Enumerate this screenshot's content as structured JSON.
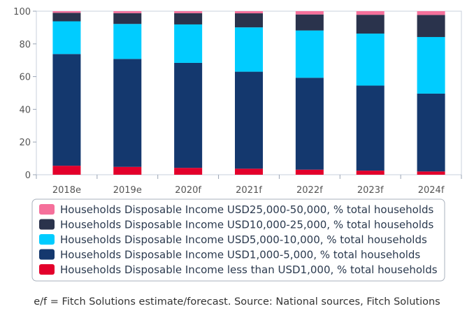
{
  "chart_data": {
    "type": "bar",
    "stacked": true,
    "categories": [
      "2018e",
      "2019e",
      "2020f",
      "2021f",
      "2022f",
      "2023f",
      "2024f"
    ],
    "ylim": [
      0,
      100
    ],
    "yticks": [
      0,
      20,
      40,
      60,
      80,
      100
    ],
    "grid": false,
    "legend_position": "bottom",
    "series": [
      {
        "name": "Households Disposable Income less than USD1,000, % total households",
        "color": "#e3002b",
        "values": [
          5.5,
          4.8,
          4.2,
          3.7,
          3.1,
          2.5,
          2.0
        ]
      },
      {
        "name": "Households Disposable Income USD1,000-5,000, % total households",
        "color": "#14386e",
        "values": [
          68.3,
          66.0,
          64.2,
          59.3,
          56.2,
          52.0,
          47.6
        ]
      },
      {
        "name": "Households Disposable Income USD5,000-10,000, % total households",
        "color": "#00ccff",
        "values": [
          20.0,
          21.4,
          23.5,
          27.1,
          28.9,
          31.8,
          34.6
        ]
      },
      {
        "name": "Households Disposable Income USD10,000-25,000, % total households",
        "color": "#2a334c",
        "values": [
          5.2,
          6.6,
          6.9,
          8.6,
          9.8,
          11.5,
          13.5
        ]
      },
      {
        "name": "Households Disposable Income USD25,000-50,000, % total households",
        "color": "#f5709b",
        "values": [
          1.0,
          1.2,
          1.2,
          1.3,
          2.0,
          2.2,
          2.3
        ]
      }
    ]
  },
  "footnote": "e/f = Fitch Solutions estimate/forecast. Source: National sources, Fitch Solutions"
}
